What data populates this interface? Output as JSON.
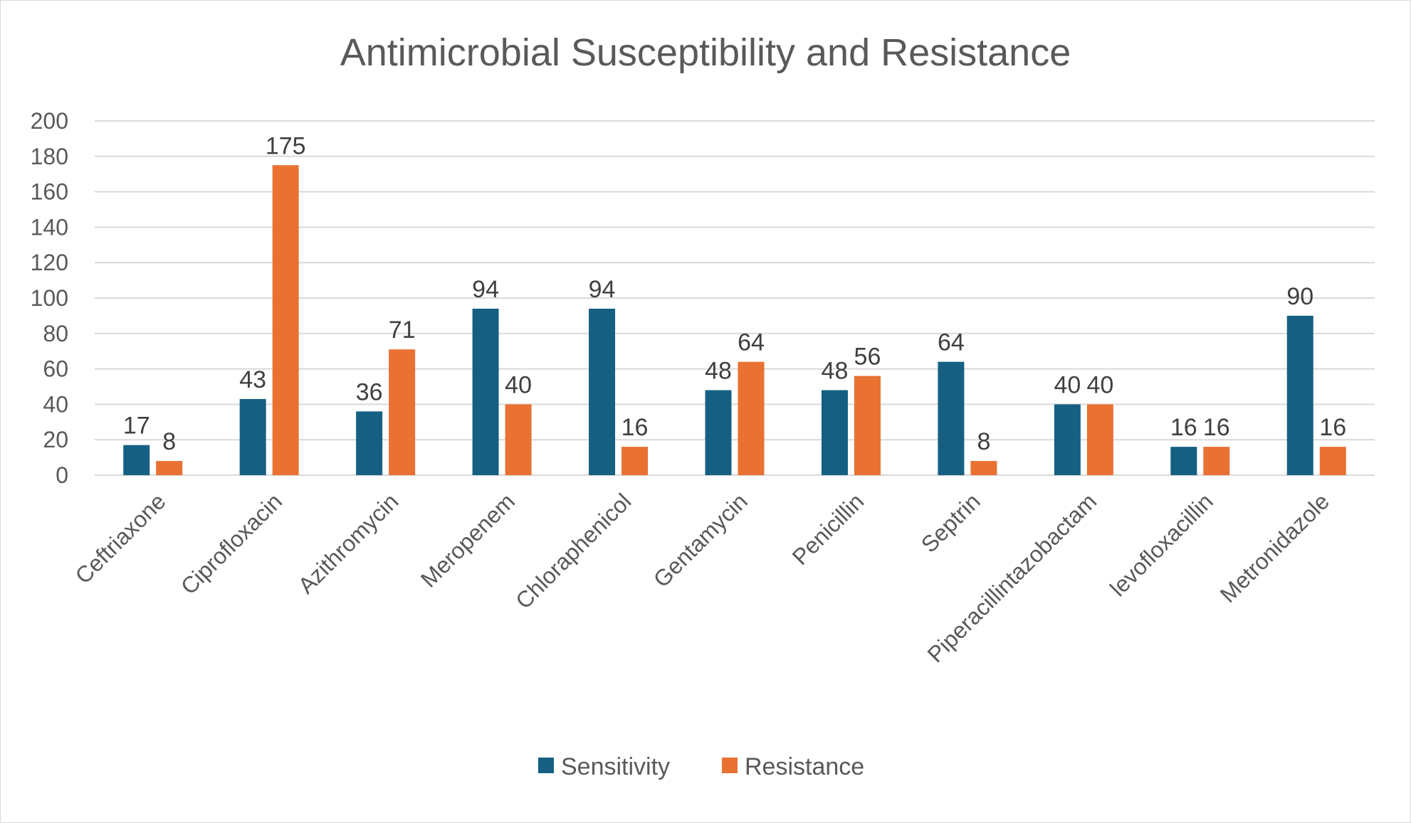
{
  "chart_data": {
    "type": "bar",
    "title": "Antimicrobial Susceptibility and Resistance",
    "xlabel": "",
    "ylabel": "",
    "ylim": [
      0,
      200
    ],
    "ytick_step": 20,
    "yticks": [
      "0",
      "20",
      "40",
      "60",
      "80",
      "100",
      "120",
      "140",
      "160",
      "180",
      "200"
    ],
    "grid": true,
    "legend_position": "bottom",
    "categories": [
      "Ceftriaxone",
      "Ciprofloxacin",
      "Azithromycin",
      "Meropenem",
      "Chloraphenicol",
      "Gentamycin",
      "Penicillin",
      "Septrin",
      "Piperacillintazobactam",
      "levofloxacillin",
      "Metronidazole"
    ],
    "series": [
      {
        "name": "Sensitivity",
        "color": "#156082",
        "values": [
          17,
          43,
          36,
          94,
          94,
          48,
          48,
          64,
          40,
          16,
          90
        ],
        "labels": [
          "17",
          "43",
          "36",
          "94",
          "94",
          "48",
          "48",
          "64",
          "40",
          "16",
          "90"
        ]
      },
      {
        "name": "Resistance",
        "color": "#E97132",
        "values": [
          8,
          175,
          71,
          40,
          16,
          64,
          56,
          8,
          40,
          16,
          16
        ],
        "labels": [
          "8",
          "175",
          "71",
          "40",
          "16",
          "64",
          "56",
          "8",
          "40",
          "16",
          "16"
        ]
      }
    ]
  }
}
